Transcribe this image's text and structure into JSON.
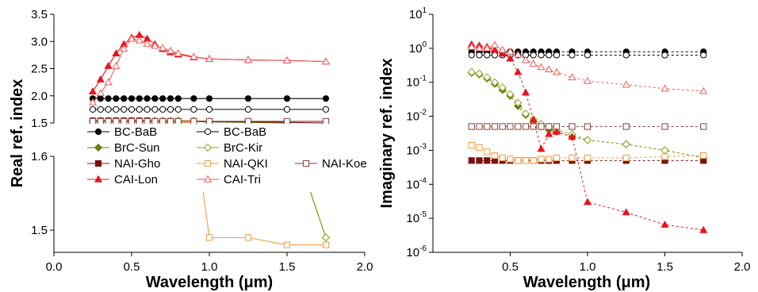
{
  "chart_data": [
    {
      "type": "line",
      "panel": "left",
      "xlabel": "Wavelength (μm)",
      "ylabel": "Real ref. index",
      "xlim": [
        0.0,
        2.0
      ],
      "x_ticks": [
        "0.0",
        "0.5",
        "1.0",
        "1.5",
        "2.0"
      ],
      "y_upper_ticks": [
        "1.5",
        "2.0",
        "2.5",
        "3.0",
        "3.5"
      ],
      "y_lower_ticks": [
        "1.5",
        "1.6"
      ],
      "ylim_upper": [
        1.5,
        3.5
      ],
      "ylim_lower": [
        1.47,
        1.6
      ],
      "axis_break": "between 1.6 and 1.5 (upper segment)",
      "legend_position": "center-left",
      "series": [
        {
          "name": "BC-BaB",
          "color": "#000000",
          "marker": "circle",
          "filled": true,
          "x": [
            0.25,
            0.3,
            0.35,
            0.4,
            0.45,
            0.5,
            0.55,
            0.6,
            0.65,
            0.7,
            0.75,
            0.8,
            0.9,
            1.0,
            1.25,
            1.5,
            1.75
          ],
          "y": [
            1.95,
            1.95,
            1.95,
            1.95,
            1.95,
            1.95,
            1.95,
            1.95,
            1.95,
            1.95,
            1.95,
            1.95,
            1.95,
            1.95,
            1.95,
            1.95,
            1.95
          ]
        },
        {
          "name": "BC-BaB",
          "color": "#000000",
          "marker": "circle",
          "filled": false,
          "x": [
            0.25,
            0.3,
            0.35,
            0.4,
            0.45,
            0.5,
            0.55,
            0.6,
            0.65,
            0.7,
            0.75,
            0.8,
            0.9,
            1.0,
            1.25,
            1.5,
            1.75
          ],
          "y": [
            1.75,
            1.75,
            1.75,
            1.75,
            1.75,
            1.75,
            1.75,
            1.75,
            1.75,
            1.75,
            1.75,
            1.75,
            1.75,
            1.75,
            1.75,
            1.75,
            1.75
          ]
        },
        {
          "name": "BrC-Sun",
          "color": "#6b7a12",
          "marker": "diamond",
          "filled": true,
          "x": [
            0.25,
            0.3,
            0.35,
            0.4,
            0.45,
            0.5,
            0.55,
            0.6,
            0.65,
            0.7,
            0.75,
            0.8,
            0.9,
            1.0,
            1.25,
            1.5,
            1.75
          ],
          "y": [
            1.54,
            1.54,
            1.54,
            1.54,
            1.54,
            1.54,
            1.54,
            1.54,
            1.54,
            1.54,
            1.54,
            1.54,
            1.53,
            1.52,
            1.51,
            1.5,
            1.49
          ]
        },
        {
          "name": "BrC-Kir",
          "color": "#8da318",
          "marker": "diamond",
          "filled": false,
          "x": [
            0.25,
            0.3,
            0.35,
            0.4,
            0.45,
            0.5,
            0.55,
            0.6,
            0.65,
            0.7,
            0.75,
            0.8,
            0.9,
            1.0,
            1.25,
            1.5,
            1.75
          ],
          "y": [
            1.54,
            1.54,
            1.54,
            1.54,
            1.54,
            1.54,
            1.54,
            1.54,
            1.54,
            1.54,
            1.54,
            1.54,
            1.54,
            1.53,
            1.52,
            1.51,
            1.49
          ]
        },
        {
          "name": "NAI-Gho",
          "color": "#7a1010",
          "marker": "square",
          "filled": true,
          "x": [
            0.25,
            0.3,
            0.35,
            0.4,
            0.45,
            0.5,
            0.55,
            0.6,
            0.65,
            0.7,
            0.75,
            0.8,
            0.9,
            1.0,
            1.25,
            1.5,
            1.75
          ],
          "y": [
            1.54,
            1.54,
            1.54,
            1.54,
            1.54,
            1.54,
            1.54,
            1.54,
            1.53,
            1.53,
            1.53,
            1.53,
            1.53,
            1.52,
            1.52,
            1.51,
            1.5
          ]
        },
        {
          "name": "NAI-QKI",
          "color": "#f39a3c",
          "marker": "square",
          "filled": false,
          "x": [
            0.25,
            0.3,
            0.35,
            0.4,
            0.45,
            0.5,
            0.55,
            0.6,
            0.65,
            0.7,
            0.75,
            0.8,
            0.9,
            1.0,
            1.25,
            1.5,
            1.75
          ],
          "y": [
            1.52,
            1.52,
            1.52,
            1.52,
            1.52,
            1.52,
            1.52,
            1.52,
            1.52,
            1.51,
            1.51,
            1.51,
            1.5,
            1.49,
            1.49,
            1.48,
            1.48
          ]
        },
        {
          "name": "NAI-Koe",
          "color": "#8b3a3a",
          "marker": "square",
          "filled": false,
          "x": [
            0.25,
            0.3,
            0.35,
            0.4,
            0.45,
            0.5,
            0.55,
            0.6,
            0.65,
            0.7,
            0.75,
            0.8,
            0.9,
            1.0,
            1.25,
            1.5,
            1.75
          ],
          "y": [
            1.53,
            1.53,
            1.53,
            1.53,
            1.53,
            1.53,
            1.53,
            1.53,
            1.53,
            1.53,
            1.53,
            1.53,
            1.53,
            1.53,
            1.53,
            1.53,
            1.53
          ]
        },
        {
          "name": "CAI-Lon",
          "color": "#e8141e",
          "marker": "triangle",
          "filled": true,
          "x": [
            0.25,
            0.3,
            0.35,
            0.4,
            0.45,
            0.5,
            0.55,
            0.6,
            0.65,
            0.7,
            0.75,
            0.8,
            0.9,
            1.0,
            1.25,
            1.5,
            1.75
          ],
          "y": [
            2.08,
            2.3,
            2.55,
            2.78,
            2.95,
            3.07,
            3.12,
            3.05,
            2.95,
            2.86,
            2.8,
            2.76,
            2.71,
            2.68,
            2.66,
            2.65,
            2.63
          ]
        },
        {
          "name": "CAI-Tri",
          "color": "#f05a5a",
          "marker": "triangle",
          "filled": false,
          "x": [
            0.25,
            0.3,
            0.35,
            0.4,
            0.45,
            0.5,
            0.55,
            0.6,
            0.65,
            0.7,
            0.75,
            0.8,
            0.9,
            1.0,
            1.25,
            1.5,
            1.75
          ],
          "y": [
            1.88,
            2.05,
            2.25,
            2.55,
            2.87,
            3.05,
            3.02,
            2.96,
            2.92,
            2.88,
            2.83,
            2.78,
            2.72,
            2.68,
            2.66,
            2.65,
            2.63
          ]
        }
      ]
    },
    {
      "type": "line",
      "panel": "right",
      "xlabel": "Wavelength (μm)",
      "ylabel": "Imaginary ref. index",
      "xlim": [
        0.0,
        2.0
      ],
      "ylim": [
        1e-06,
        10
      ],
      "yscale": "log",
      "x_ticks": [
        "0.5",
        "1.0",
        "1.5",
        "2.0"
      ],
      "y_ticks": [
        {
          "base": "10",
          "exp": "1"
        },
        {
          "base": "10",
          "exp": "0"
        },
        {
          "base": "10",
          "exp": "-1"
        },
        {
          "base": "10",
          "exp": "-2"
        },
        {
          "base": "10",
          "exp": "-3"
        },
        {
          "base": "10",
          "exp": "-4"
        },
        {
          "base": "10",
          "exp": "-5"
        },
        {
          "base": "10",
          "exp": "-6"
        }
      ],
      "series": [
        {
          "name": "BC-BaB",
          "color": "#000000",
          "marker": "circle",
          "filled": true,
          "x": [
            0.25,
            0.3,
            0.35,
            0.4,
            0.45,
            0.5,
            0.55,
            0.6,
            0.65,
            0.7,
            0.75,
            0.8,
            0.9,
            1.0,
            1.25,
            1.5,
            1.75
          ],
          "y": [
            0.79,
            0.79,
            0.79,
            0.79,
            0.79,
            0.79,
            0.79,
            0.79,
            0.79,
            0.79,
            0.79,
            0.79,
            0.79,
            0.79,
            0.79,
            0.79,
            0.79
          ]
        },
        {
          "name": "BC-BaB",
          "color": "#000000",
          "marker": "circle",
          "filled": false,
          "x": [
            0.25,
            0.3,
            0.35,
            0.4,
            0.45,
            0.5,
            0.55,
            0.6,
            0.65,
            0.7,
            0.75,
            0.8,
            0.9,
            1.0,
            1.25,
            1.5,
            1.75
          ],
          "y": [
            0.63,
            0.63,
            0.63,
            0.63,
            0.63,
            0.63,
            0.63,
            0.63,
            0.63,
            0.63,
            0.63,
            0.63,
            0.63,
            0.63,
            0.63,
            0.63,
            0.63
          ]
        },
        {
          "name": "BrC-Sun",
          "color": "#6b7a12",
          "marker": "diamond",
          "filled": true,
          "x": [
            0.25,
            0.3,
            0.35,
            0.4,
            0.45,
            0.5,
            0.55,
            0.6,
            0.65,
            0.7,
            0.75,
            0.8,
            0.9,
            1.0,
            1.25,
            1.5,
            1.75
          ],
          "y": [
            0.19,
            0.17,
            0.13,
            0.09,
            0.06,
            0.04,
            0.02,
            0.011,
            0.007,
            0.005,
            0.004,
            0.0035,
            0.0025,
            0.002,
            0.0015,
            0.001,
            0.0006
          ]
        },
        {
          "name": "BrC-Kir",
          "color": "#8da318",
          "marker": "diamond",
          "filled": false,
          "x": [
            0.25,
            0.3,
            0.35,
            0.4,
            0.45,
            0.5,
            0.55,
            0.6,
            0.65,
            0.7,
            0.75,
            0.8,
            0.9,
            1.0,
            1.25,
            1.5,
            1.75
          ],
          "y": [
            0.2,
            0.18,
            0.14,
            0.1,
            0.07,
            0.045,
            0.025,
            0.012,
            0.008,
            0.006,
            0.005,
            0.004,
            0.003,
            0.002,
            0.0015,
            0.001,
            0.0006
          ]
        },
        {
          "name": "NAI-Gho",
          "color": "#7a1010",
          "marker": "square",
          "filled": true,
          "x": [
            0.25,
            0.3,
            0.35,
            0.4,
            0.45,
            0.5,
            0.55,
            0.6,
            0.65,
            0.7,
            0.75,
            0.8,
            0.9,
            1.0,
            1.25,
            1.5,
            1.75
          ],
          "y": [
            0.0005,
            0.0005,
            0.0005,
            0.0005,
            0.0005,
            0.0005,
            0.0005,
            0.0005,
            0.0005,
            0.0005,
            0.0005,
            0.0005,
            0.0005,
            0.0005,
            0.0005,
            0.0005,
            0.0005
          ]
        },
        {
          "name": "NAI-QKI",
          "color": "#f39a3c",
          "marker": "square",
          "filled": false,
          "x": [
            0.25,
            0.3,
            0.35,
            0.4,
            0.45,
            0.5,
            0.55,
            0.6,
            0.65,
            0.7,
            0.75,
            0.8,
            0.9,
            1.0,
            1.25,
            1.5,
            1.75
          ],
          "y": [
            0.0014,
            0.0012,
            0.0009,
            0.0007,
            0.0006,
            0.00055,
            0.0005,
            0.0005,
            0.0005,
            0.00055,
            0.00055,
            0.0006,
            0.0006,
            0.0006,
            0.0006,
            0.00065,
            0.0007
          ]
        },
        {
          "name": "NAI-Koe",
          "color": "#8b3a3a",
          "marker": "square",
          "filled": false,
          "x": [
            0.25,
            0.3,
            0.35,
            0.4,
            0.45,
            0.5,
            0.55,
            0.6,
            0.65,
            0.7,
            0.75,
            0.8,
            0.9,
            1.0,
            1.25,
            1.5,
            1.75
          ],
          "y": [
            0.005,
            0.005,
            0.005,
            0.005,
            0.005,
            0.005,
            0.005,
            0.005,
            0.005,
            0.005,
            0.005,
            0.005,
            0.005,
            0.005,
            0.005,
            0.005,
            0.005
          ]
        },
        {
          "name": "CAI-Lon",
          "color": "#e8141e",
          "marker": "triangle",
          "filled": true,
          "x": [
            0.25,
            0.3,
            0.35,
            0.4,
            0.45,
            0.5,
            0.55,
            0.6,
            0.65,
            0.7,
            0.75,
            0.8,
            0.9,
            1.0,
            1.25,
            1.5,
            1.75
          ],
          "y": [
            1.3,
            1.2,
            1.1,
            0.9,
            0.7,
            0.5,
            0.2,
            0.05,
            0.008,
            0.0011,
            0.003,
            0.0035,
            0.0025,
            3e-05,
            1.5e-05,
            6.5e-06,
            4.5e-06
          ]
        },
        {
          "name": "CAI-Tri",
          "color": "#f05a5a",
          "marker": "triangle",
          "filled": false,
          "x": [
            0.25,
            0.3,
            0.35,
            0.4,
            0.45,
            0.5,
            0.55,
            0.6,
            0.65,
            0.7,
            0.75,
            0.8,
            0.9,
            1.0,
            1.25,
            1.5,
            1.75
          ],
          "y": [
            1.1,
            1.0,
            1.0,
            1.25,
            0.9,
            0.8,
            0.65,
            0.45,
            0.35,
            0.28,
            0.24,
            0.2,
            0.14,
            0.11,
            0.085,
            0.065,
            0.055
          ]
        }
      ]
    }
  ]
}
